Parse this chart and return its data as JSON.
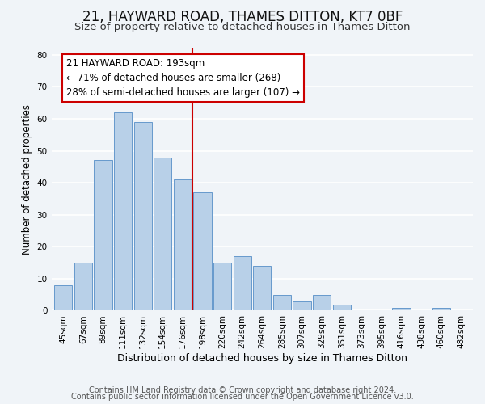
{
  "title": "21, HAYWARD ROAD, THAMES DITTON, KT7 0BF",
  "subtitle": "Size of property relative to detached houses in Thames Ditton",
  "xlabel": "Distribution of detached houses by size in Thames Ditton",
  "ylabel": "Number of detached properties",
  "bar_labels": [
    "45sqm",
    "67sqm",
    "89sqm",
    "111sqm",
    "132sqm",
    "154sqm",
    "176sqm",
    "198sqm",
    "220sqm",
    "242sqm",
    "264sqm",
    "285sqm",
    "307sqm",
    "329sqm",
    "351sqm",
    "373sqm",
    "395sqm",
    "416sqm",
    "438sqm",
    "460sqm",
    "482sqm"
  ],
  "bar_heights": [
    8,
    15,
    47,
    62,
    59,
    48,
    41,
    37,
    15,
    17,
    14,
    5,
    3,
    5,
    2,
    0,
    0,
    1,
    0,
    1,
    0
  ],
  "bar_color": "#b8d0e8",
  "bar_edge_color": "#6699cc",
  "vline_color": "#cc0000",
  "annotation_line1": "21 HAYWARD ROAD: 193sqm",
  "annotation_line2": "← 71% of detached houses are smaller (268)",
  "annotation_line3": "28% of semi-detached houses are larger (107) →",
  "annotation_box_edge": "#cc0000",
  "annotation_box_face": "#ffffff",
  "ylim": [
    0,
    82
  ],
  "yticks": [
    0,
    10,
    20,
    30,
    40,
    50,
    60,
    70,
    80
  ],
  "footer1": "Contains HM Land Registry data © Crown copyright and database right 2024.",
  "footer2": "Contains public sector information licensed under the Open Government Licence v3.0.",
  "background_color": "#f0f4f8",
  "grid_color": "#ffffff",
  "title_fontsize": 12,
  "subtitle_fontsize": 9.5,
  "xlabel_fontsize": 9,
  "ylabel_fontsize": 8.5,
  "tick_fontsize": 7.5,
  "annotation_fontsize": 8.5,
  "footer_fontsize": 7
}
